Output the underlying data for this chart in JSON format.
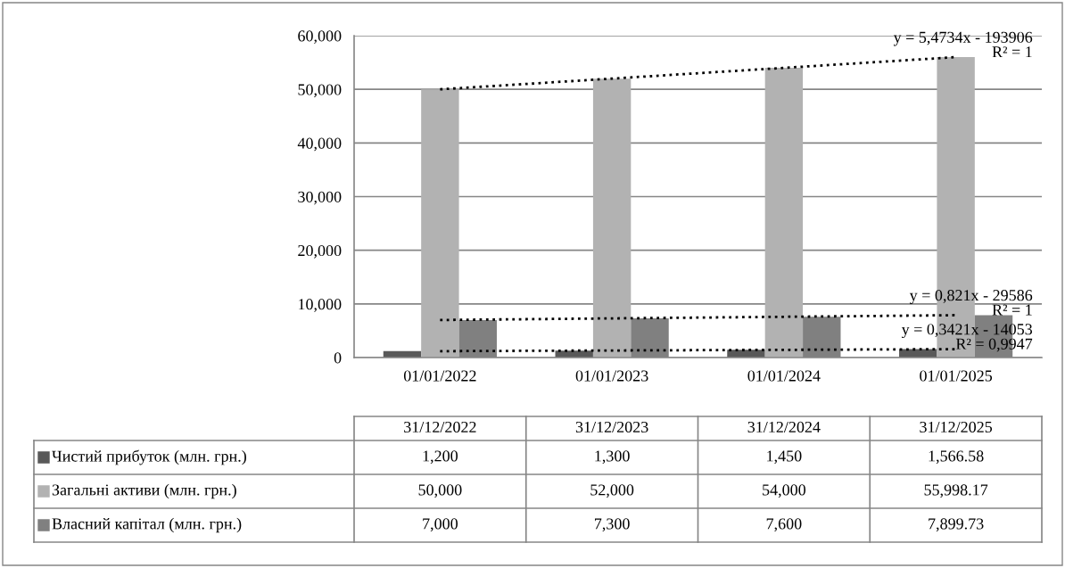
{
  "chart_data": {
    "type": "bar",
    "categories": [
      "01/01/2022",
      "01/01/2023",
      "01/01/2024",
      "01/01/2025"
    ],
    "series": [
      {
        "name": "Чистий прибуток (млн. грн.)",
        "color": "#595959",
        "values": [
          1200,
          1300,
          1450,
          1566.58
        ]
      },
      {
        "name": "Загальні активи (млн. грн.)",
        "color": "#b2b2b2",
        "values": [
          50000,
          52000,
          54000,
          55998.17
        ]
      },
      {
        "name": "Власний капітал (млн. грн.)",
        "color": "#808080",
        "values": [
          7000,
          7300,
          7600,
          7899.73
        ]
      },
      {
        "type": "line",
        "color": "#000000",
        "line_style": "dotted",
        "values": [
          50000,
          52000,
          54000,
          56000
        ]
      },
      {
        "type": "line",
        "color": "#000000",
        "line_style": "dotted",
        "values": [
          7000,
          7300,
          7600,
          7900
        ]
      },
      {
        "type": "line",
        "color": "#000000",
        "line_style": "dotted",
        "values": [
          1192,
          1317,
          1442,
          1567
        ]
      }
    ],
    "ylim": [
      0,
      60000
    ],
    "yticks": [
      {
        "value": 0,
        "label": "0"
      },
      {
        "value": 10000,
        "label": "10,000"
      },
      {
        "value": 20000,
        "label": "20,000"
      },
      {
        "value": 30000,
        "label": "30,000"
      },
      {
        "value": 40000,
        "label": "40,000"
      },
      {
        "value": 50000,
        "label": "50,000"
      },
      {
        "value": 60000,
        "label": "60,000"
      }
    ],
    "grid": "y",
    "legend": "bottom",
    "value_labels": [
      [
        "1,200",
        "1,300",
        "1,450",
        "1,566.58"
      ],
      [
        "50,000",
        "52,000",
        "54,000",
        "55,998.17"
      ],
      [
        "7,000",
        "7,300",
        "7,600",
        "7,899.73"
      ]
    ],
    "annotations": [
      {
        "text": "y = 5,4734x - 193906\nR² = 1",
        "x": "01/01/2025",
        "y": 56000
      },
      {
        "text": "y = 0,821x - 29586\nR² = 1",
        "x": "01/01/2025",
        "y": 7900
      },
      {
        "text": "y = 0,3421x - 14053\nR² = 0,9947",
        "x": "01/01/2025",
        "y": 1567
      },
      "31/12/2022",
      "31/12/2023",
      "31/12/2024",
      "31/12/2025"
    ]
  }
}
